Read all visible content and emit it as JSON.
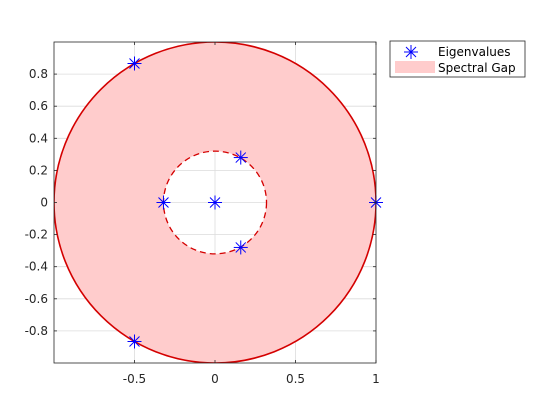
{
  "chart_data": {
    "type": "scatter",
    "title": "",
    "xlabel": "",
    "ylabel": "",
    "xlim": [
      -1,
      1
    ],
    "ylim": [
      -1,
      1
    ],
    "grid": true,
    "x_ticks": [
      -0.5,
      0,
      0.5,
      1
    ],
    "x_tick_labels": [
      "-0.5",
      "0",
      "0.5",
      "1"
    ],
    "y_ticks": [
      -0.8,
      -0.6,
      -0.4,
      -0.2,
      0,
      0.2,
      0.4,
      0.6,
      0.8
    ],
    "y_tick_labels": [
      "-0.8",
      "-0.6",
      "-0.4",
      "-0.2",
      "0",
      "0.2",
      "0.4",
      "0.6",
      "0.8"
    ],
    "legend": {
      "placement": "outside-top-right",
      "entries": [
        "Eigenvalues",
        "Spectral Gap"
      ]
    },
    "series": [
      {
        "name": "Eigenvalues",
        "marker": "asterisk",
        "color": "#0000ff",
        "points": [
          {
            "x": 1,
            "y": 0
          },
          {
            "x": -0.5,
            "y": 0.866
          },
          {
            "x": -0.5,
            "y": -0.866
          },
          {
            "x": 0.16,
            "y": 0.28
          },
          {
            "x": 0.16,
            "y": -0.28
          },
          {
            "x": -0.32,
            "y": 0
          },
          {
            "x": 0,
            "y": 0
          }
        ]
      }
    ],
    "regions": [
      {
        "name": "Spectral Gap",
        "shape": "annulus",
        "center": [
          0,
          0
        ],
        "outer_radius": 1,
        "inner_radius": 0.32,
        "fill_color": "#ffcccc",
        "edge_color": "#d40000"
      }
    ]
  }
}
